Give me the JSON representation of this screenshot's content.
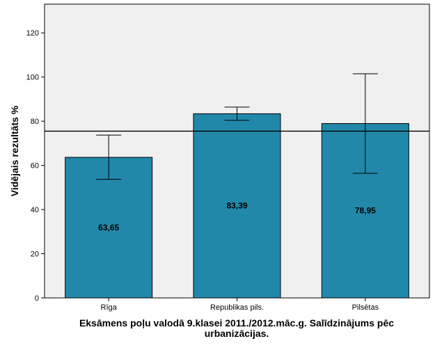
{
  "chart_data": {
    "type": "bar",
    "title_lines": [
      "Eksāmens poļu valodā 9.klasei 2011./2012.māc.g. Salīdzinājums pēc",
      "urbanizācijas."
    ],
    "xlabel": "",
    "ylabel": "Vidējais rezultāts %",
    "categories": [
      "Rīga",
      "Republikas pils.",
      "Pilsētas"
    ],
    "values": [
      63.65,
      83.39,
      78.95
    ],
    "value_labels": [
      "63,65",
      "83,39",
      "78,95"
    ],
    "error_bars": [
      {
        "low": 53.7,
        "high": 73.7
      },
      {
        "low": 80.4,
        "high": 86.4
      },
      {
        "low": 56.4,
        "high": 101.5
      }
    ],
    "reference_line": 75.5,
    "ylim": [
      0,
      133
    ],
    "yticks": [
      0,
      20,
      40,
      60,
      80,
      100,
      120
    ],
    "bar_color": "#2288aa",
    "plot_background": "#f0f0f0",
    "grid": false,
    "legend": "none"
  }
}
